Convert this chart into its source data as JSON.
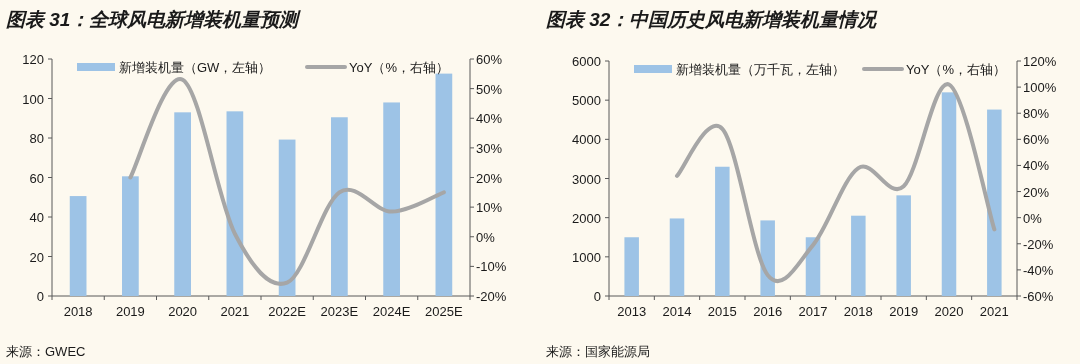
{
  "chart_data": [
    {
      "type": "bar",
      "title": "图表 31：全球风电新增装机量预测",
      "categories": [
        "2018",
        "2019",
        "2020",
        "2021",
        "2022E",
        "2023E",
        "2024E",
        "2025E"
      ],
      "series": [
        {
          "name": "新增装机量（GW，左轴）",
          "color": "#9dc3e6",
          "values": [
            50.6,
            60.6,
            93,
            93.5,
            79.2,
            90.5,
            98,
            112.6
          ]
        },
        {
          "name": "YoY（%，右轴）",
          "type": "line",
          "axis": "y2",
          "color": "#a6a6a6",
          "values": [
            null,
            20,
            53,
            1,
            -15.5,
            15,
            8.5,
            15
          ]
        }
      ],
      "ylim": [
        0,
        120
      ],
      "yticks": [
        0,
        20,
        40,
        60,
        80,
        100,
        120
      ],
      "y2lim": [
        -20,
        60
      ],
      "y2ticks": [
        {
          "value": -20,
          "label": "-20%"
        },
        {
          "value": -10,
          "label": "-10%"
        },
        {
          "value": 0,
          "label": "0%"
        },
        {
          "value": 10,
          "label": "10%"
        },
        {
          "value": 20,
          "label": "20%"
        },
        {
          "value": 30,
          "label": "30%"
        },
        {
          "value": 40,
          "label": "40%"
        },
        {
          "value": 50,
          "label": "50%"
        },
        {
          "value": 60,
          "label": "60%"
        }
      ],
      "legend": "top",
      "annotations": [
        "来源：GWEC"
      ]
    },
    {
      "type": "bar",
      "title": "图表 32：中国历史风电新增装机量情况",
      "categories": [
        "2013",
        "2014",
        "2015",
        "2016",
        "2017",
        "2018",
        "2019",
        "2020",
        "2021"
      ],
      "series": [
        {
          "name": "新增装机量（万千瓦，左轴）",
          "color": "#9dc3e6",
          "values": [
            1500,
            1980,
            3300,
            1930,
            1500,
            2050,
            2570,
            5200,
            4760
          ]
        },
        {
          "name": "YoY（%，右轴）",
          "type": "line",
          "axis": "y2",
          "color": "#a6a6a6",
          "values": [
            null,
            32,
            68,
            -44,
            -21,
            38,
            24,
            102,
            -9
          ]
        }
      ],
      "ylim": [
        0,
        6000
      ],
      "yticks": [
        0,
        1000,
        2000,
        3000,
        4000,
        5000,
        6000
      ],
      "y2lim": [
        -60,
        120
      ],
      "y2ticks": [
        {
          "value": -60,
          "label": "-60%"
        },
        {
          "value": -40,
          "label": "-40%"
        },
        {
          "value": -20,
          "label": "-20%"
        },
        {
          "value": 0,
          "label": "0%"
        },
        {
          "value": 20,
          "label": "20%"
        },
        {
          "value": 40,
          "label": "40%"
        },
        {
          "value": 60,
          "label": "60%"
        },
        {
          "value": 80,
          "label": "80%"
        },
        {
          "value": 100,
          "label": "100%"
        },
        {
          "value": 120,
          "label": "120%"
        }
      ],
      "legend": "top",
      "annotations": [
        "来源：国家能源局"
      ]
    }
  ]
}
